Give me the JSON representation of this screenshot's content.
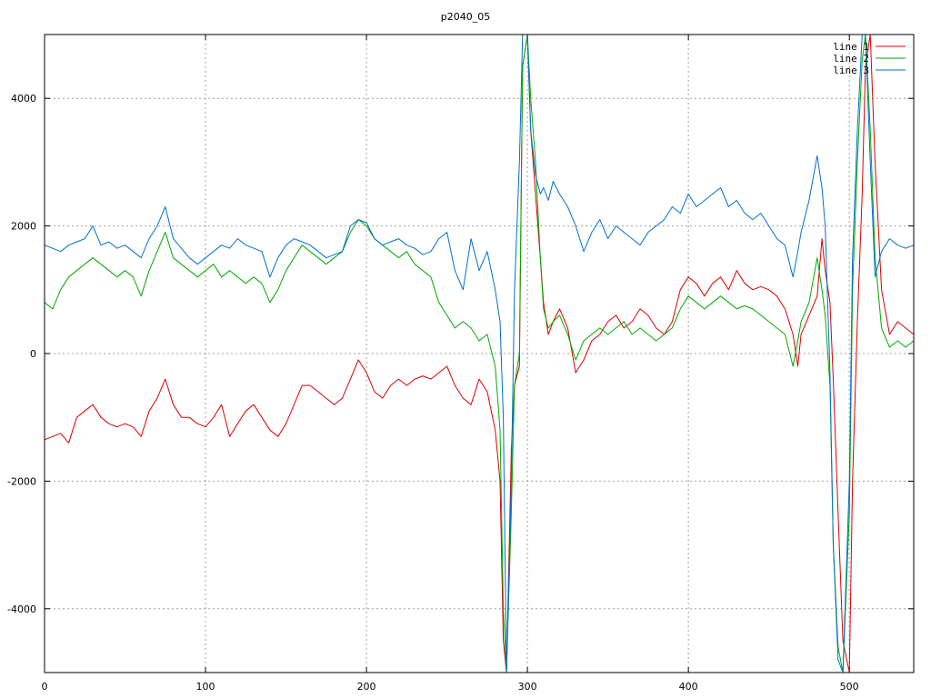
{
  "chart_data": {
    "type": "line",
    "title": "p2040_05",
    "xlabel": "",
    "ylabel": "",
    "xlim": [
      0,
      540
    ],
    "ylim": [
      -5000,
      5000
    ],
    "xticks": [
      0,
      100,
      200,
      300,
      400,
      500
    ],
    "yticks": [
      -4000,
      -2000,
      0,
      2000,
      4000
    ],
    "ytick_labels": [
      "-4000",
      "-2000",
      "0",
      "2000",
      "4000"
    ],
    "grid": true,
    "legend_position": "top-right",
    "series": [
      {
        "name": "line 1",
        "color": "#dd0000",
        "x": [
          0,
          5,
          10,
          15,
          20,
          25,
          30,
          35,
          40,
          45,
          50,
          55,
          60,
          65,
          70,
          75,
          80,
          85,
          90,
          95,
          100,
          105,
          110,
          115,
          120,
          125,
          130,
          135,
          140,
          145,
          150,
          155,
          160,
          165,
          170,
          175,
          180,
          185,
          190,
          195,
          200,
          205,
          210,
          215,
          220,
          225,
          230,
          235,
          240,
          245,
          250,
          255,
          260,
          265,
          270,
          275,
          280,
          283,
          285,
          287,
          290,
          292,
          295,
          297,
          300,
          302,
          305,
          308,
          310,
          313,
          316,
          320,
          325,
          330,
          335,
          340,
          345,
          350,
          355,
          360,
          365,
          370,
          375,
          380,
          385,
          390,
          395,
          400,
          405,
          410,
          415,
          420,
          425,
          430,
          435,
          440,
          445,
          450,
          455,
          460,
          465,
          468,
          470,
          475,
          480,
          483,
          485,
          488,
          490,
          493,
          496,
          500,
          502,
          505,
          508,
          510,
          513,
          516,
          520,
          525,
          530,
          535,
          540
        ],
        "y": [
          -1350,
          -1300,
          -1250,
          -1400,
          -1000,
          -900,
          -800,
          -1000,
          -1100,
          -1150,
          -1100,
          -1150,
          -1300,
          -900,
          -700,
          -400,
          -800,
          -1000,
          -1000,
          -1100,
          -1150,
          -1000,
          -800,
          -1300,
          -1100,
          -900,
          -800,
          -1000,
          -1200,
          -1300,
          -1100,
          -800,
          -500,
          -500,
          -600,
          -700,
          -800,
          -700,
          -400,
          -100,
          -300,
          -600,
          -700,
          -500,
          -400,
          -500,
          -400,
          -350,
          -400,
          -300,
          -200,
          -500,
          -700,
          -800,
          -400,
          -600,
          -1200,
          -2000,
          -4500,
          -5000,
          -1500,
          -500,
          -200,
          4500,
          5000,
          3500,
          2500,
          1500,
          800,
          300,
          500,
          700,
          400,
          -300,
          -100,
          200,
          300,
          500,
          600,
          400,
          500,
          700,
          600,
          400,
          300,
          500,
          1000,
          1200,
          1100,
          900,
          1100,
          1200,
          1000,
          1300,
          1100,
          1000,
          1050,
          1000,
          900,
          700,
          300,
          -200,
          300,
          600,
          900,
          1800,
          1300,
          800,
          -400,
          -2500,
          -4500,
          -5000,
          -2000,
          500,
          2500,
          4500,
          5000,
          3000,
          1000,
          300,
          500,
          400,
          300
        ]
      },
      {
        "name": "line 2",
        "color": "#00aa00",
        "x": [
          0,
          5,
          10,
          15,
          20,
          25,
          30,
          35,
          40,
          45,
          50,
          55,
          60,
          65,
          70,
          75,
          80,
          85,
          90,
          95,
          100,
          105,
          110,
          115,
          120,
          125,
          130,
          135,
          140,
          145,
          150,
          155,
          160,
          165,
          170,
          175,
          180,
          185,
          190,
          195,
          200,
          205,
          210,
          215,
          220,
          225,
          230,
          235,
          240,
          245,
          250,
          255,
          260,
          265,
          270,
          275,
          280,
          283,
          285,
          287,
          290,
          292,
          295,
          297,
          300,
          302,
          305,
          308,
          310,
          313,
          316,
          320,
          325,
          330,
          335,
          340,
          345,
          350,
          355,
          360,
          365,
          370,
          375,
          380,
          385,
          390,
          395,
          400,
          405,
          410,
          415,
          420,
          425,
          430,
          435,
          440,
          445,
          450,
          455,
          460,
          465,
          468,
          470,
          475,
          480,
          483,
          485,
          488,
          490,
          493,
          496,
          500,
          502,
          505,
          508,
          510,
          513,
          516,
          520,
          525,
          530,
          535,
          540
        ],
        "y": [
          800,
          700,
          1000,
          1200,
          1300,
          1400,
          1500,
          1400,
          1300,
          1200,
          1300,
          1200,
          900,
          1300,
          1600,
          1900,
          1500,
          1400,
          1300,
          1200,
          1300,
          1400,
          1200,
          1300,
          1200,
          1100,
          1200,
          1100,
          800,
          1000,
          1300,
          1500,
          1700,
          1600,
          1500,
          1400,
          1500,
          1600,
          1900,
          2100,
          2000,
          1800,
          1700,
          1600,
          1500,
          1600,
          1400,
          1300,
          1200,
          800,
          600,
          400,
          500,
          400,
          200,
          300,
          -200,
          -1200,
          -4000,
          -5000,
          -2500,
          -500,
          0,
          4500,
          5000,
          4000,
          3000,
          1500,
          700,
          400,
          500,
          600,
          300,
          -100,
          200,
          300,
          400,
          300,
          400,
          500,
          300,
          400,
          300,
          200,
          300,
          400,
          700,
          900,
          800,
          700,
          800,
          900,
          800,
          700,
          750,
          700,
          600,
          500,
          400,
          300,
          -200,
          200,
          500,
          800,
          1500,
          1000,
          600,
          -500,
          -3000,
          -4600,
          -5000,
          -2500,
          1000,
          3000,
          4600,
          5000,
          3500,
          1500,
          400,
          100,
          200,
          100,
          200
        ]
      },
      {
        "name": "line 3",
        "color": "#0070d0",
        "x": [
          0,
          5,
          10,
          15,
          20,
          25,
          30,
          35,
          40,
          45,
          50,
          55,
          60,
          65,
          70,
          75,
          80,
          85,
          90,
          95,
          100,
          105,
          110,
          115,
          120,
          125,
          130,
          135,
          140,
          145,
          150,
          155,
          160,
          165,
          170,
          175,
          180,
          185,
          190,
          195,
          200,
          205,
          210,
          215,
          220,
          225,
          230,
          235,
          240,
          245,
          250,
          255,
          260,
          265,
          270,
          275,
          280,
          283,
          285,
          287,
          290,
          292,
          295,
          297,
          300,
          302,
          305,
          308,
          310,
          313,
          316,
          320,
          325,
          330,
          335,
          340,
          345,
          350,
          355,
          360,
          365,
          370,
          375,
          380,
          385,
          390,
          395,
          400,
          405,
          410,
          415,
          420,
          425,
          430,
          435,
          440,
          445,
          450,
          455,
          460,
          465,
          468,
          470,
          475,
          480,
          483,
          485,
          488,
          490,
          493,
          496,
          500,
          502,
          505,
          508,
          510,
          513,
          516,
          520,
          525,
          530,
          535,
          540
        ],
        "y": [
          1700,
          1650,
          1600,
          1700,
          1750,
          1800,
          2000,
          1700,
          1750,
          1650,
          1700,
          1600,
          1500,
          1800,
          2000,
          2300,
          1800,
          1650,
          1500,
          1400,
          1500,
          1600,
          1700,
          1650,
          1800,
          1700,
          1650,
          1600,
          1200,
          1500,
          1700,
          1800,
          1750,
          1700,
          1600,
          1500,
          1550,
          1600,
          2000,
          2100,
          2050,
          1800,
          1700,
          1750,
          1800,
          1700,
          1650,
          1550,
          1600,
          1800,
          1900,
          1300,
          1000,
          1800,
          1300,
          1600,
          1000,
          500,
          -1000,
          -5000,
          -2000,
          1000,
          3000,
          5000,
          5000,
          3500,
          2800,
          2500,
          2600,
          2400,
          2700,
          2500,
          2300,
          2000,
          1600,
          1900,
          2100,
          1800,
          2000,
          1900,
          1800,
          1700,
          1900,
          2000,
          2100,
          2300,
          2200,
          2500,
          2300,
          2400,
          2500,
          2600,
          2300,
          2400,
          2200,
          2100,
          2200,
          2000,
          1800,
          1700,
          1200,
          1600,
          1900,
          2400,
          3100,
          2600,
          2000,
          -300,
          -3000,
          -4800,
          -5000,
          -2000,
          1500,
          3500,
          5000,
          5000,
          3000,
          1200,
          1600,
          1800,
          1700,
          1650,
          1700
        ]
      }
    ]
  }
}
